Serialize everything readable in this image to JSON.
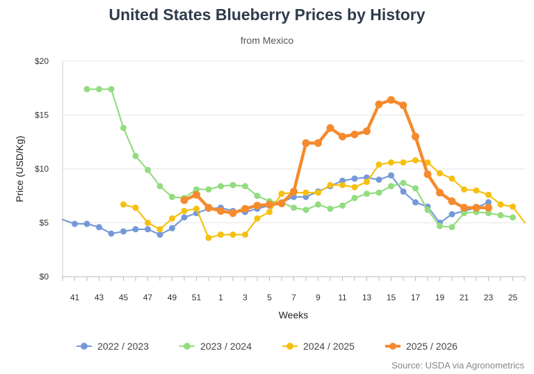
{
  "chart_data": {
    "type": "line",
    "title": "United States Blueberry Prices by History",
    "subtitle": "from Mexico",
    "xlabel": "Weeks",
    "ylabel": "Price (USD/Kg)",
    "ylim": [
      0,
      20
    ],
    "yticks": [
      "$0",
      "$5",
      "$10",
      "$15",
      "$20"
    ],
    "x": [
      40,
      41,
      42,
      43,
      44,
      45,
      46,
      47,
      48,
      49,
      50,
      51,
      52,
      1,
      2,
      3,
      4,
      5,
      6,
      7,
      8,
      9,
      10,
      11,
      12,
      13,
      14,
      15,
      16,
      17,
      18,
      19,
      20,
      21,
      22,
      23,
      24,
      25,
      26
    ],
    "x_tick_labels": [
      "41",
      "43",
      "45",
      "47",
      "49",
      "51",
      "1",
      "3",
      "5",
      "7",
      "9",
      "11",
      "13",
      "15",
      "17",
      "19",
      "21",
      "23",
      "25"
    ],
    "grid": true,
    "legend_position": "bottom",
    "series": [
      {
        "name": "2022 / 2023",
        "color": "#7599d8",
        "values": [
          5.3,
          4.9,
          4.9,
          4.6,
          4.0,
          4.2,
          4.4,
          4.4,
          3.9,
          4.5,
          5.5,
          5.9,
          6.3,
          6.4,
          6.1,
          6.0,
          6.3,
          6.6,
          6.9,
          7.4,
          7.4,
          7.9,
          8.4,
          8.9,
          9.1,
          9.2,
          9.0,
          9.4,
          7.9,
          6.9,
          6.5,
          5.0,
          5.8,
          6.1,
          6.4,
          6.9,
          null,
          null,
          null
        ]
      },
      {
        "name": "2023 / 2024",
        "color": "#93dc80",
        "values": [
          null,
          null,
          17.4,
          17.4,
          17.4,
          13.8,
          11.2,
          9.9,
          8.4,
          7.4,
          7.3,
          8.1,
          8.1,
          8.4,
          8.5,
          8.4,
          7.5,
          7.0,
          6.9,
          6.4,
          6.2,
          6.7,
          6.3,
          6.6,
          7.3,
          7.7,
          7.8,
          8.4,
          8.7,
          8.2,
          6.2,
          4.7,
          4.6,
          5.9,
          6.0,
          5.9,
          5.7,
          5.5,
          null
        ]
      },
      {
        "name": "2024 / 2025",
        "color": "#f5c011",
        "values": [
          null,
          null,
          null,
          null,
          null,
          6.7,
          6.4,
          5.0,
          4.4,
          5.4,
          6.1,
          6.3,
          3.6,
          3.9,
          3.9,
          3.9,
          5.4,
          6.0,
          7.7,
          7.8,
          7.8,
          7.8,
          8.5,
          8.5,
          8.3,
          8.8,
          10.4,
          10.6,
          10.6,
          10.8,
          10.6,
          9.6,
          9.1,
          8.1,
          8.0,
          7.6,
          6.7,
          6.5,
          5.0
        ]
      },
      {
        "name": "2025 / 2026",
        "color": "#f58a2e",
        "values": [
          null,
          null,
          null,
          null,
          null,
          null,
          null,
          null,
          null,
          null,
          7.1,
          7.6,
          6.4,
          6.1,
          5.9,
          6.3,
          6.6,
          6.7,
          6.8,
          7.9,
          12.4,
          12.4,
          13.8,
          13.0,
          13.2,
          13.5,
          16.0,
          16.4,
          15.9,
          13.0,
          9.5,
          7.8,
          7.0,
          6.4,
          6.4,
          6.4,
          null,
          null,
          null
        ]
      }
    ]
  },
  "legend": {
    "items": [
      {
        "label": "2022 / 2023",
        "color": "#7599d8"
      },
      {
        "label": "2023 / 2024",
        "color": "#93dc80"
      },
      {
        "label": "2024 / 2025",
        "color": "#f5c011"
      },
      {
        "label": "2025 / 2026",
        "color": "#f58a2e"
      }
    ]
  },
  "footer": {
    "source": "Source: USDA via Agronometrics"
  }
}
